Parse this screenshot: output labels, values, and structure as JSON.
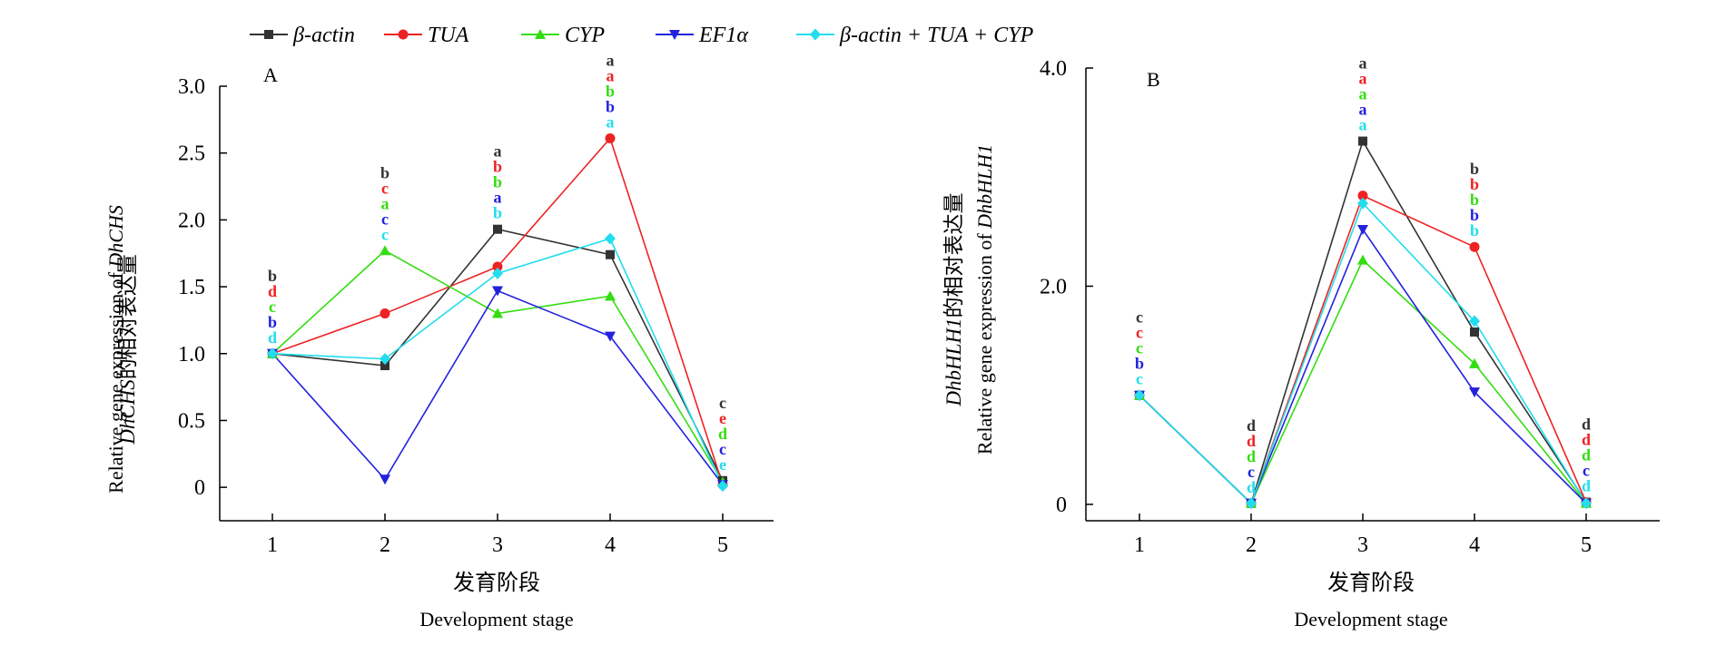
{
  "legend": [
    {
      "name": "β-actin",
      "color": "#333333",
      "marker": "square"
    },
    {
      "name": "TUA",
      "color": "#ee2222",
      "marker": "circle"
    },
    {
      "name": "CYP",
      "color": "#33dd11",
      "marker": "triangle-up"
    },
    {
      "name": "EF1α",
      "color": "#2222dd",
      "marker": "triangle-down"
    },
    {
      "name": "β-actin + TUA + CYP",
      "color": "#22ddee",
      "marker": "diamond"
    }
  ],
  "chart_data": [
    {
      "type": "line",
      "panel_label": "A",
      "title": "",
      "xlabel_cn": "发育阶段",
      "xlabel_en": "Development stage",
      "ylabel_cn_prefix": "DhCHS",
      "ylabel_cn_suffix": "的相对表达量",
      "ylabel_en_prefix": "Relative gene expression of ",
      "ylabel_en_gene": "DhCHS",
      "x": [
        1,
        2,
        3,
        4,
        5
      ],
      "xlim": [
        0.5,
        5.5
      ],
      "ylim": [
        -0.25,
        3.0
      ],
      "yticks": [
        0,
        0.5,
        1.0,
        1.5,
        2.0,
        2.5,
        3.0
      ],
      "ytick_labels": [
        "0",
        "0.5",
        "1.0",
        "1.5",
        "2.0",
        "2.5",
        "3.0"
      ],
      "xtick_labels": [
        "1",
        "2",
        "3",
        "4",
        "5"
      ],
      "grid": false,
      "series": [
        {
          "name": "β-actin",
          "values": [
            1.0,
            0.91,
            1.93,
            1.74,
            0.05
          ],
          "letters": [
            "b",
            "b",
            "a",
            "a",
            "c"
          ]
        },
        {
          "name": "TUA",
          "values": [
            1.0,
            1.3,
            1.65,
            2.61,
            0.02
          ],
          "letters": [
            "d",
            "c",
            "b",
            "a",
            "e"
          ]
        },
        {
          "name": "CYP",
          "values": [
            1.0,
            1.77,
            1.3,
            1.43,
            0.04
          ],
          "letters": [
            "c",
            "a",
            "b",
            "b",
            "d"
          ]
        },
        {
          "name": "EF1α",
          "values": [
            1.0,
            0.06,
            1.47,
            1.13,
            0.02
          ],
          "letters": [
            "b",
            "c",
            "a",
            "b",
            "c"
          ]
        },
        {
          "name": "β-actin + TUA + CYP",
          "values": [
            1.0,
            0.96,
            1.6,
            1.86,
            0.01
          ],
          "letters": [
            "d",
            "c",
            "b",
            "a",
            "e"
          ]
        }
      ]
    },
    {
      "type": "line",
      "panel_label": "B",
      "title": "",
      "xlabel_cn": "发育阶段",
      "xlabel_en": "Development stage",
      "ylabel_cn_prefix": "DhbHLH1",
      "ylabel_cn_suffix": "的相对表达量",
      "ylabel_en_prefix": "Relative gene expression of ",
      "ylabel_en_gene": "DhbHLH1",
      "x": [
        1,
        2,
        3,
        4,
        5
      ],
      "xlim": [
        0.5,
        5.5
      ],
      "ylim": [
        -0.15,
        4.0
      ],
      "yticks": [
        0,
        2.0,
        4.0
      ],
      "ytick_labels": [
        "0",
        "2.0",
        "4.0"
      ],
      "xtick_labels": [
        "1",
        "2",
        "3",
        "4",
        "5"
      ],
      "grid": false,
      "series": [
        {
          "name": "β-actin",
          "values": [
            1.0,
            0.01,
            3.33,
            1.58,
            0.02
          ],
          "letters": [
            "c",
            "d",
            "a",
            "b",
            "d"
          ]
        },
        {
          "name": "TUA",
          "values": [
            1.0,
            0.01,
            2.83,
            2.36,
            0.02
          ],
          "letters": [
            "c",
            "d",
            "a",
            "b",
            "d"
          ]
        },
        {
          "name": "CYP",
          "values": [
            1.0,
            0.01,
            2.24,
            1.29,
            0.01
          ],
          "letters": [
            "c",
            "d",
            "a",
            "b",
            "d"
          ]
        },
        {
          "name": "EF1α",
          "values": [
            1.0,
            0.01,
            2.52,
            1.03,
            0.01
          ],
          "letters": [
            "b",
            "c",
            "a",
            "b",
            "c"
          ]
        },
        {
          "name": "β-actin + TUA + CYP",
          "values": [
            1.0,
            0.01,
            2.76,
            1.68,
            0.01
          ],
          "letters": [
            "c",
            "d",
            "a",
            "b",
            "d"
          ]
        }
      ]
    }
  ]
}
